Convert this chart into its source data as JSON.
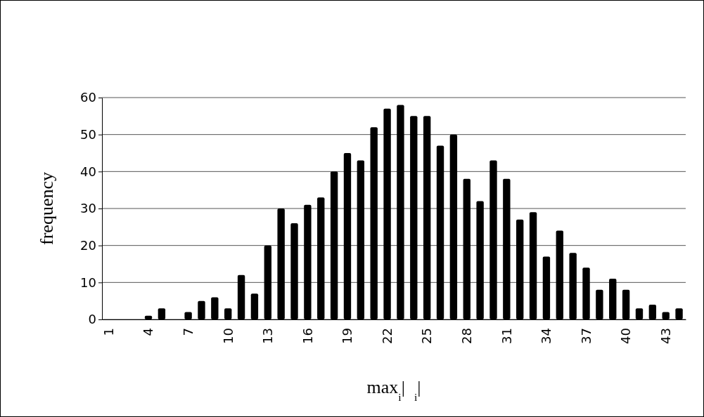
{
  "chart_data": {
    "type": "bar",
    "xlabel": "max$_{i}$|  $_{i}$|",
    "ylabel": "frequency",
    "categories": [
      "1",
      null,
      null,
      "4",
      null,
      null,
      "7",
      null,
      null,
      "10",
      null,
      null,
      "13",
      null,
      null,
      "16",
      null,
      null,
      "19",
      null,
      null,
      "22",
      null,
      null,
      "25",
      null,
      null,
      "28",
      null,
      null,
      "31",
      null,
      null,
      "34",
      null,
      null,
      "37",
      null,
      null,
      "40",
      null,
      null,
      "43",
      null
    ],
    "values": [
      0,
      0,
      0,
      1,
      3,
      0,
      2,
      5,
      6,
      3,
      12,
      7,
      20,
      30,
      26,
      31,
      33,
      40,
      45,
      43,
      52,
      57,
      58,
      55,
      55,
      47,
      50,
      38,
      32,
      43,
      38,
      27,
      29,
      17,
      24,
      18,
      14,
      8,
      11,
      8,
      3,
      4,
      2,
      3
    ],
    "color": "#000000",
    "ylim": [
      0,
      60
    ],
    "yticks": [
      0,
      10,
      20,
      30,
      40,
      50,
      60
    ],
    "grid": "y"
  }
}
